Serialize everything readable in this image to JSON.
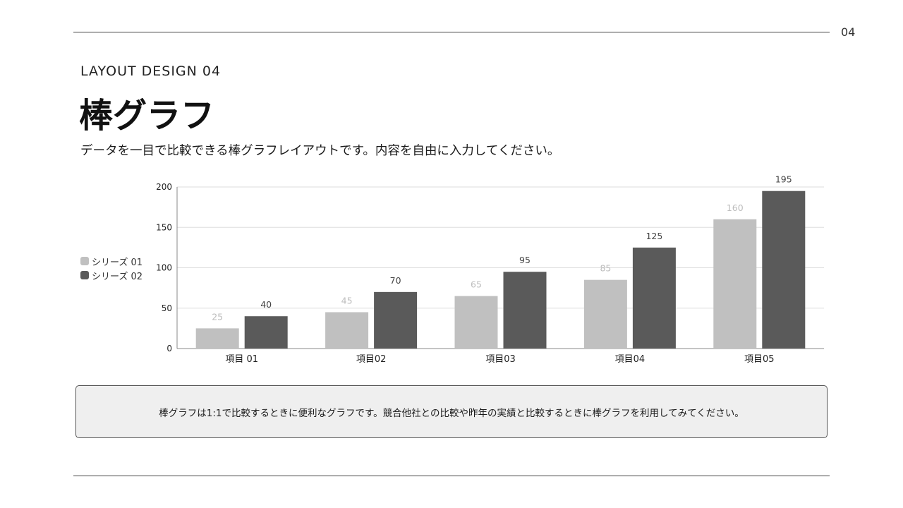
{
  "page_number": "04",
  "eyebrow": "LAYOUT DESIGN 04",
  "title": "棒グラフ",
  "lead": "データを一目で比較できる棒グラフレイアウトです。内容を自由に入力してください。",
  "note": "棒グラフは1:1で比較するときに便利なグラフです。競合他社との比較や昨年の実績と比較するときに棒グラフを利用してみてください。",
  "colors": {
    "series1": "#c0c0c0",
    "series2": "#5a5a5a",
    "grid": "#dddddd",
    "axis": "#888888"
  },
  "chart_data": {
    "type": "bar",
    "categories": [
      "項目 01",
      "項目02",
      "項目03",
      "項目04",
      "項目05"
    ],
    "series": [
      {
        "name": "シリーズ 01",
        "values": [
          25,
          45,
          65,
          85,
          160
        ]
      },
      {
        "name": "シリーズ 02",
        "values": [
          40,
          70,
          95,
          125,
          195
        ]
      }
    ],
    "yticks": [
      0,
      50,
      100,
      150,
      200
    ],
    "ylim": [
      0,
      200
    ],
    "grid": true,
    "legend": "left"
  }
}
